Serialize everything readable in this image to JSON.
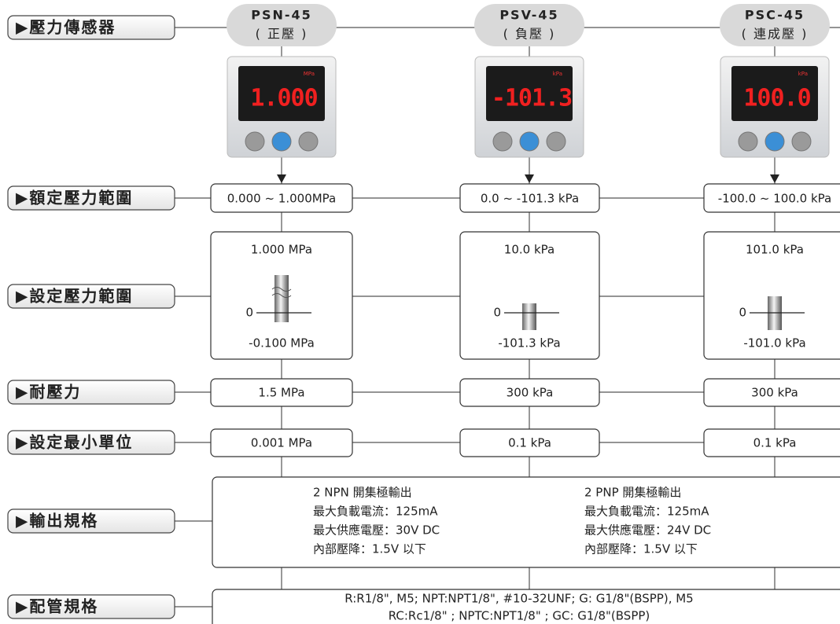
{
  "rows": [
    {
      "label": "▶壓力傳感器"
    },
    {
      "label": "▶額定壓力範圍"
    },
    {
      "label": "▶設定壓力範圍"
    },
    {
      "label": "▶耐壓力"
    },
    {
      "label": "▶設定最小單位"
    },
    {
      "label": "▶輸出規格"
    },
    {
      "label": "▶配管規格"
    }
  ],
  "models": [
    {
      "name": "PSN-45",
      "subtitle": "( 正壓 )",
      "display": "1.000",
      "unit": "MPa",
      "rated_range": "0.000 ~ 1.000MPa",
      "set_max": "1.000 MPa",
      "set_zero": "0",
      "set_min": "-0.100 MPa",
      "proof_pressure": "1.5 MPa",
      "min_unit": "0.001 MPa"
    },
    {
      "name": "PSV-45",
      "subtitle": "( 負壓 )",
      "display": "-101.3",
      "unit": "kPa",
      "rated_range": "0.0 ~ -101.3 kPa",
      "set_max": "10.0 kPa",
      "set_zero": "0",
      "set_min": "-101.3 kPa",
      "proof_pressure": "300 kPa",
      "min_unit": "0.1 kPa"
    },
    {
      "name": "PSC-45",
      "subtitle": "( 連成壓 )",
      "display": "100.0",
      "unit": "kPa",
      "rated_range": "-100.0 ~ 100.0 kPa",
      "set_max": "101.0 kPa",
      "set_zero": "0",
      "set_min": "-101.0 kPa",
      "proof_pressure": "300 kPa",
      "min_unit": "0.1 kPa"
    }
  ],
  "output": [
    [
      "2 NPN 開集極輸出",
      "最大負載電流：125mA",
      "最大供應電壓：30V DC",
      "內部壓降：1.5V 以下"
    ],
    [
      "2 PNP 開集極輸出",
      "最大負載電流：125mA",
      "最大供應電壓：24V DC",
      "內部壓降：1.5V 以下"
    ]
  ],
  "piping": [
    "R:R1/8\", M5; NPT:NPT1/8\", #10-32UNF; G: G1/8\"(BSPP), M5",
    "RC:Rc1/8\" ; NPTC:NPT1/8\" ; GC: G1/8\"(BSPP)"
  ]
}
